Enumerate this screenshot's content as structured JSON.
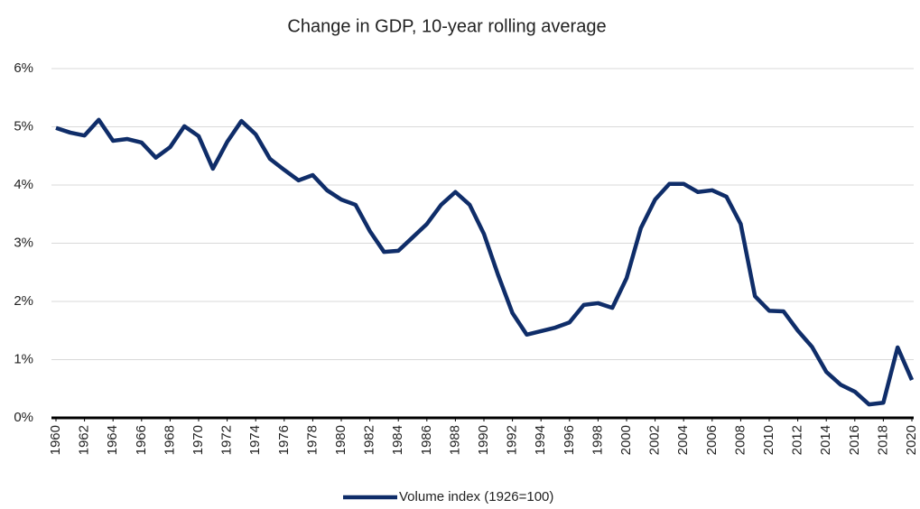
{
  "chart_data": {
    "type": "line",
    "title": "Change in GDP, 10-year rolling average",
    "x": [
      1960,
      1961,
      1962,
      1963,
      1964,
      1965,
      1966,
      1967,
      1968,
      1969,
      1970,
      1971,
      1972,
      1973,
      1974,
      1975,
      1976,
      1977,
      1978,
      1979,
      1980,
      1981,
      1982,
      1983,
      1984,
      1985,
      1986,
      1987,
      1988,
      1989,
      1990,
      1991,
      1992,
      1993,
      1994,
      1995,
      1996,
      1997,
      1998,
      1999,
      2000,
      2001,
      2002,
      2003,
      2004,
      2005,
      2006,
      2007,
      2008,
      2009,
      2010,
      2011,
      2012,
      2013,
      2014,
      2015,
      2016,
      2017,
      2018,
      2019,
      2020
    ],
    "series": [
      {
        "name": "Volume index (1926=100)",
        "color": "#0f2d69",
        "values": [
          4.98,
          4.9,
          4.85,
          5.12,
          4.76,
          4.79,
          4.73,
          4.47,
          4.65,
          5.01,
          4.84,
          4.28,
          4.74,
          5.1,
          4.87,
          4.45,
          4.26,
          4.08,
          4.17,
          3.91,
          3.75,
          3.66,
          3.21,
          2.85,
          2.87,
          3.1,
          3.33,
          3.66,
          3.88,
          3.66,
          3.16,
          2.45,
          1.8,
          1.43,
          1.49,
          1.55,
          1.64,
          1.94,
          1.97,
          1.89,
          2.4,
          3.26,
          3.75,
          4.02,
          4.02,
          3.88,
          3.91,
          3.8,
          3.33,
          2.09,
          1.84,
          1.83,
          1.5,
          1.22,
          0.79,
          0.57,
          0.45,
          0.23,
          0.26,
          1.21,
          0.65
        ]
      }
    ],
    "xlim": [
      1960,
      2020
    ],
    "xticks": [
      1960,
      1962,
      1964,
      1966,
      1968,
      1970,
      1972,
      1974,
      1976,
      1978,
      1980,
      1982,
      1984,
      1986,
      1988,
      1990,
      1992,
      1994,
      1996,
      1998,
      2000,
      2002,
      2004,
      2006,
      2008,
      2010,
      2012,
      2014,
      2016,
      2018,
      2020
    ],
    "ylim": [
      0,
      6
    ],
    "yticks": [
      {
        "value": 0,
        "label": "0%"
      },
      {
        "value": 1,
        "label": "1%"
      },
      {
        "value": 2,
        "label": "2%"
      },
      {
        "value": 3,
        "label": "3%"
      },
      {
        "value": 4,
        "label": "4%"
      },
      {
        "value": 5,
        "label": "5%"
      },
      {
        "value": 6,
        "label": "6%"
      }
    ],
    "grid": true,
    "legend": "bottom"
  }
}
